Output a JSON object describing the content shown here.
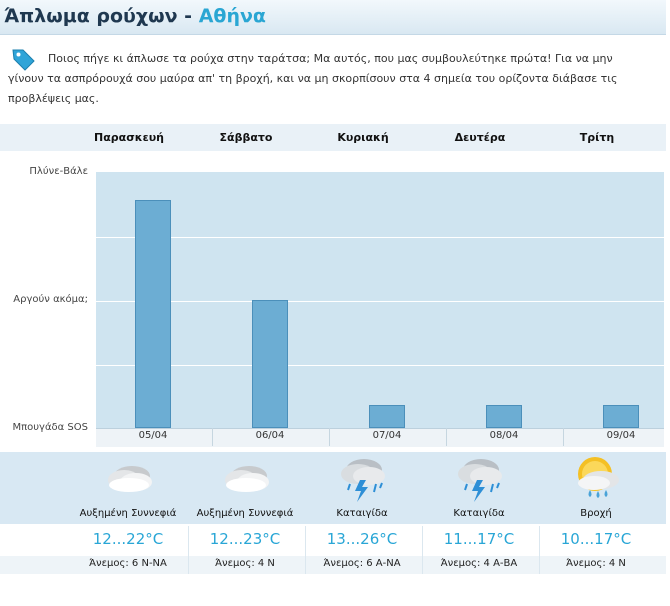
{
  "header": {
    "title_prefix": "Άπλωμα ρούχων - ",
    "city": "Αθήνα"
  },
  "intro": {
    "icon": "tag-icon",
    "text": "Ποιος πήγε κι άπλωσε τα ρούχα στην ταράτσα; Μα αυτός, που μας συμβουλεύτηκε πρώτα! Για να μην γίνουν τα ασπρόρουχά σου μαύρα απ' τη βροχή, και να μη σκορπίσουν στα 4 σημεία του ορίζοντα διάβασε τις προβλέψεις μας."
  },
  "days": [
    "Παρασκευή",
    "Σάββατο",
    "Κυριακή",
    "Δευτέρα",
    "Τρίτη"
  ],
  "chart_data": {
    "type": "bar",
    "categories": [
      "05/04",
      "06/04",
      "07/04",
      "08/04",
      "09/04"
    ],
    "values": [
      0.89,
      0.5,
      0.09,
      0.09,
      0.09
    ],
    "ylim": [
      0,
      1
    ],
    "ytick_labels": [
      {
        "label": "Μπουγάδα SOS",
        "value": 0
      },
      {
        "label": "Αργούν ακόμα;",
        "value": 0.5
      },
      {
        "label": "Πλύνε-Βάλε",
        "value": 1
      }
    ],
    "colors": {
      "bar": "#6cadd3",
      "plot_bg": "#cfe4f0"
    }
  },
  "forecast": [
    {
      "icon": "cloudy-icon",
      "condition": "Αυξημένη Συννεφιά",
      "temp": "12...22°C",
      "wind": "Άνεμος: 6 Ν-ΝΑ"
    },
    {
      "icon": "cloudy-icon",
      "condition": "Αυξημένη Συννεφιά",
      "temp": "12...23°C",
      "wind": "Άνεμος: 4 Ν"
    },
    {
      "icon": "thunderstorm-icon",
      "condition": "Καταιγίδα",
      "temp": "13...26°C",
      "wind": "Άνεμος: 6 Α-ΝΑ"
    },
    {
      "icon": "thunderstorm-icon",
      "condition": "Καταιγίδα",
      "temp": "11...17°C",
      "wind": "Άνεμος: 4 Α-ΒΑ"
    },
    {
      "icon": "rain-sun-icon",
      "condition": "Βροχή",
      "temp": "10...17°C",
      "wind": "Άνεμος: 4 Ν"
    }
  ]
}
